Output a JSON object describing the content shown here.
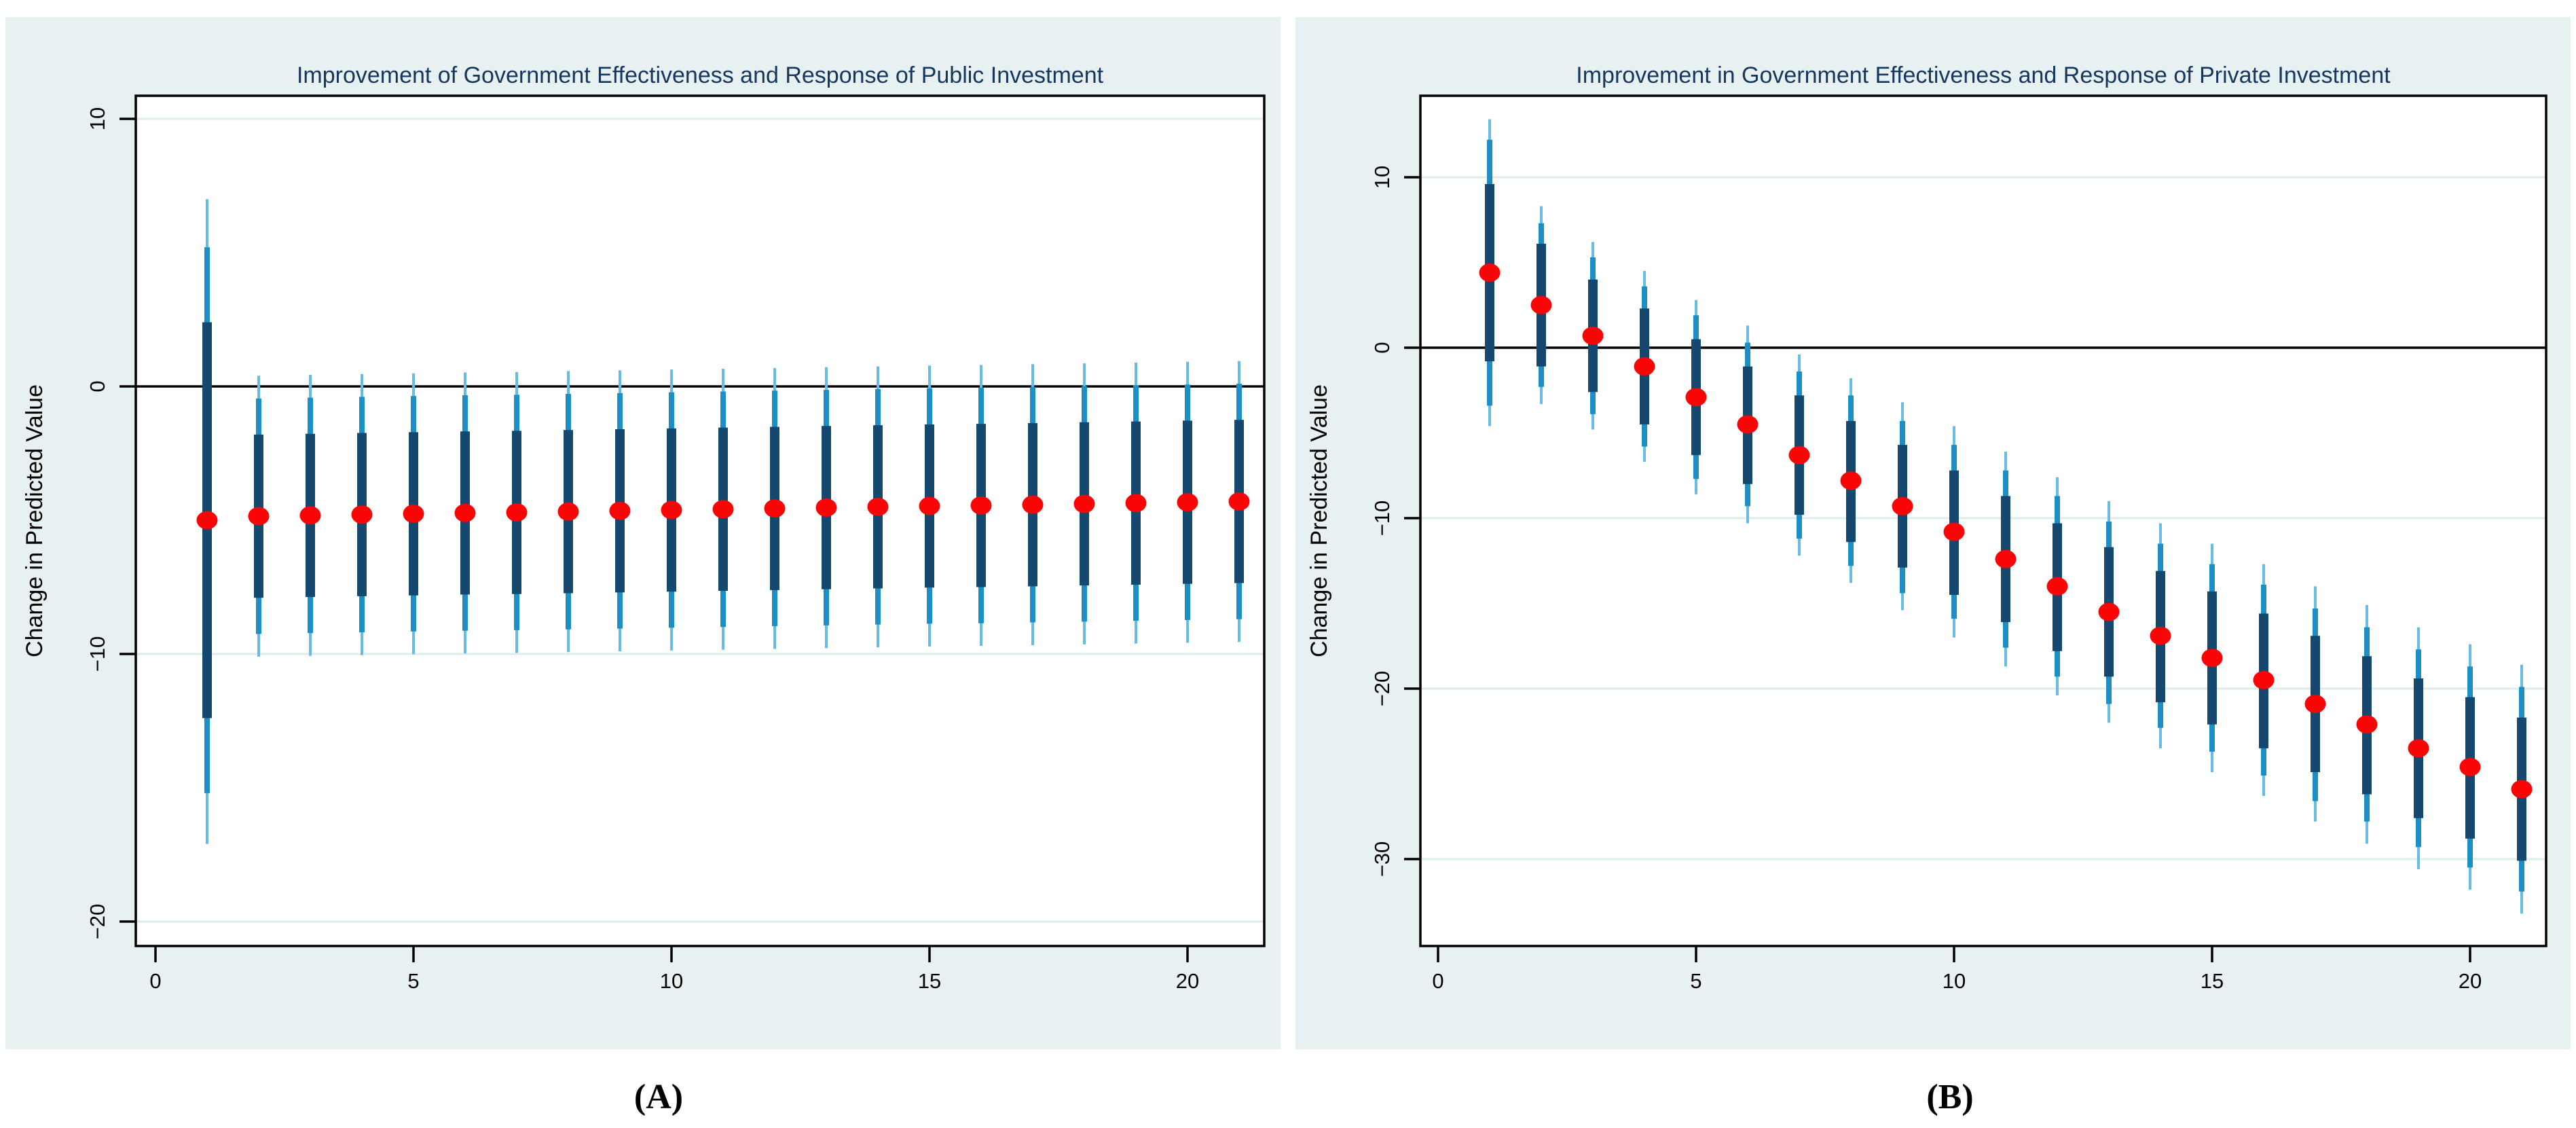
{
  "page": {
    "caption_a": "(A)",
    "caption_b": "(B)"
  },
  "colors": {
    "figure_background": "#ffffff",
    "panel_background": "#e7f1f1",
    "plot_background": "#ffffff",
    "gridline": "#ddecec",
    "axis": "#000000",
    "zero_line": "#000000",
    "title_text": "#17365d",
    "tick_text": "#000000",
    "ci_inner": "#14486f",
    "ci_mid": "#1b90c6",
    "ci_outer": "#68bbe3",
    "marker": "#fa0505"
  },
  "chart_data": [
    {
      "type": "scatter",
      "panel": "A",
      "title": "Improvement of Government Effectiveness and Response of Public Investment",
      "xlabel": "",
      "ylabel": "Change in Predicted Value",
      "x_ticks": [
        0,
        5,
        10,
        15,
        20
      ],
      "y_ticks": [
        10,
        0,
        -10,
        -20
      ],
      "xlim": [
        -0.38,
        21.5
      ],
      "ylim": [
        -20.9,
        10.9
      ],
      "zero_line": 0,
      "grid": true,
      "legend": "none",
      "series_note": "red dot = point estimate; thick navy bar = inner CI; medium blue = mid CI; thin light blue whisker = outer CI",
      "points": [
        {
          "x": 1,
          "y": -5.0,
          "inner": [
            2.4,
            -12.4
          ],
          "mid": [
            5.2,
            -15.2
          ],
          "outer": [
            7.0,
            -17.1
          ]
        },
        {
          "x": 2,
          "y": -4.85,
          "inner": [
            -1.8,
            -7.9
          ],
          "mid": [
            -0.45,
            -9.25
          ],
          "outer": [
            0.4,
            -10.1
          ]
        },
        {
          "x": 3,
          "y": -4.82,
          "inner": [
            -1.77,
            -7.87
          ],
          "mid": [
            -0.42,
            -9.22
          ],
          "outer": [
            0.43,
            -10.07
          ]
        },
        {
          "x": 4,
          "y": -4.79,
          "inner": [
            -1.74,
            -7.84
          ],
          "mid": [
            -0.39,
            -9.19
          ],
          "outer": [
            0.46,
            -10.04
          ]
        },
        {
          "x": 5,
          "y": -4.76,
          "inner": [
            -1.71,
            -7.81
          ],
          "mid": [
            -0.36,
            -9.16
          ],
          "outer": [
            0.49,
            -10.01
          ]
        },
        {
          "x": 6,
          "y": -4.73,
          "inner": [
            -1.68,
            -7.78
          ],
          "mid": [
            -0.33,
            -9.13
          ],
          "outer": [
            0.52,
            -9.98
          ]
        },
        {
          "x": 7,
          "y": -4.71,
          "inner": [
            -1.66,
            -7.76
          ],
          "mid": [
            -0.31,
            -9.11
          ],
          "outer": [
            0.54,
            -9.96
          ]
        },
        {
          "x": 8,
          "y": -4.68,
          "inner": [
            -1.63,
            -7.73
          ],
          "mid": [
            -0.28,
            -9.08
          ],
          "outer": [
            0.57,
            -9.93
          ]
        },
        {
          "x": 9,
          "y": -4.65,
          "inner": [
            -1.6,
            -7.7
          ],
          "mid": [
            -0.25,
            -9.05
          ],
          "outer": [
            0.6,
            -9.9
          ]
        },
        {
          "x": 10,
          "y": -4.62,
          "inner": [
            -1.57,
            -7.67
          ],
          "mid": [
            -0.22,
            -9.02
          ],
          "outer": [
            0.63,
            -9.87
          ]
        },
        {
          "x": 11,
          "y": -4.59,
          "inner": [
            -1.54,
            -7.64
          ],
          "mid": [
            -0.19,
            -8.99
          ],
          "outer": [
            0.66,
            -9.84
          ]
        },
        {
          "x": 12,
          "y": -4.56,
          "inner": [
            -1.51,
            -7.61
          ],
          "mid": [
            -0.16,
            -8.96
          ],
          "outer": [
            0.69,
            -9.81
          ]
        },
        {
          "x": 13,
          "y": -4.53,
          "inner": [
            -1.48,
            -7.58
          ],
          "mid": [
            -0.13,
            -8.93
          ],
          "outer": [
            0.72,
            -9.78
          ]
        },
        {
          "x": 14,
          "y": -4.5,
          "inner": [
            -1.45,
            -7.55
          ],
          "mid": [
            -0.1,
            -8.9
          ],
          "outer": [
            0.75,
            -9.75
          ]
        },
        {
          "x": 15,
          "y": -4.47,
          "inner": [
            -1.42,
            -7.52
          ],
          "mid": [
            -0.07,
            -8.87
          ],
          "outer": [
            0.78,
            -9.72
          ]
        },
        {
          "x": 16,
          "y": -4.45,
          "inner": [
            -1.4,
            -7.5
          ],
          "mid": [
            -0.05,
            -8.85
          ],
          "outer": [
            0.8,
            -9.7
          ]
        },
        {
          "x": 17,
          "y": -4.42,
          "inner": [
            -1.37,
            -7.47
          ],
          "mid": [
            -0.02,
            -8.82
          ],
          "outer": [
            0.83,
            -9.67
          ]
        },
        {
          "x": 18,
          "y": -4.39,
          "inner": [
            -1.34,
            -7.44
          ],
          "mid": [
            0.01,
            -8.79
          ],
          "outer": [
            0.86,
            -9.64
          ]
        },
        {
          "x": 19,
          "y": -4.36,
          "inner": [
            -1.31,
            -7.41
          ],
          "mid": [
            0.04,
            -8.76
          ],
          "outer": [
            0.89,
            -9.61
          ]
        },
        {
          "x": 20,
          "y": -4.33,
          "inner": [
            -1.28,
            -7.38
          ],
          "mid": [
            0.07,
            -8.73
          ],
          "outer": [
            0.92,
            -9.58
          ]
        },
        {
          "x": 21,
          "y": -4.3,
          "inner": [
            -1.25,
            -7.35
          ],
          "mid": [
            0.1,
            -8.7
          ],
          "outer": [
            0.95,
            -9.55
          ]
        }
      ]
    },
    {
      "type": "scatter",
      "panel": "B",
      "title": "Improvement in Government Effectiveness  and Response of Private Investment",
      "xlabel": "",
      "ylabel": "Change in Predicted Value",
      "x_ticks": [
        0,
        5,
        10,
        15,
        20
      ],
      "y_ticks": [
        10,
        0,
        -10,
        -20,
        -30
      ],
      "xlim": [
        -0.35,
        21.5
      ],
      "ylim": [
        -35.1,
        14.8
      ],
      "zero_line": 0,
      "grid": true,
      "legend": "none",
      "series_note": "red dot = point estimate; thick navy bar = inner CI; medium blue = mid CI; thin light blue whisker = outer CI",
      "points": [
        {
          "x": 1,
          "y": 4.4,
          "inner": [
            9.6,
            -0.8
          ],
          "mid": [
            12.2,
            -3.4
          ],
          "outer": [
            13.4,
            -4.6
          ]
        },
        {
          "x": 2,
          "y": 2.5,
          "inner": [
            6.1,
            -1.1
          ],
          "mid": [
            7.3,
            -2.3
          ],
          "outer": [
            8.3,
            -3.3
          ]
        },
        {
          "x": 3,
          "y": 0.7,
          "inner": [
            4.0,
            -2.6
          ],
          "mid": [
            5.3,
            -3.9
          ],
          "outer": [
            6.2,
            -4.8
          ]
        },
        {
          "x": 4,
          "y": -1.1,
          "inner": [
            2.3,
            -4.5
          ],
          "mid": [
            3.6,
            -5.8
          ],
          "outer": [
            4.5,
            -6.7
          ]
        },
        {
          "x": 5,
          "y": -2.9,
          "inner": [
            0.5,
            -6.3
          ],
          "mid": [
            1.9,
            -7.7
          ],
          "outer": [
            2.8,
            -8.6
          ]
        },
        {
          "x": 6,
          "y": -4.5,
          "inner": [
            -1.1,
            -8.0
          ],
          "mid": [
            0.3,
            -9.3
          ],
          "outer": [
            1.3,
            -10.3
          ]
        },
        {
          "x": 7,
          "y": -6.3,
          "inner": [
            -2.8,
            -9.8
          ],
          "mid": [
            -1.4,
            -11.2
          ],
          "outer": [
            -0.4,
            -12.2
          ]
        },
        {
          "x": 8,
          "y": -7.8,
          "inner": [
            -4.3,
            -11.4
          ],
          "mid": [
            -2.8,
            -12.8
          ],
          "outer": [
            -1.8,
            -13.8
          ]
        },
        {
          "x": 9,
          "y": -9.3,
          "inner": [
            -5.7,
            -12.9
          ],
          "mid": [
            -4.3,
            -14.4
          ],
          "outer": [
            -3.2,
            -15.4
          ]
        },
        {
          "x": 10,
          "y": -10.8,
          "inner": [
            -7.2,
            -14.5
          ],
          "mid": [
            -5.7,
            -15.9
          ],
          "outer": [
            -4.6,
            -17.0
          ]
        },
        {
          "x": 11,
          "y": -12.4,
          "inner": [
            -8.7,
            -16.1
          ],
          "mid": [
            -7.2,
            -17.6
          ],
          "outer": [
            -6.1,
            -18.7
          ]
        },
        {
          "x": 12,
          "y": -14.0,
          "inner": [
            -10.3,
            -17.8
          ],
          "mid": [
            -8.7,
            -19.3
          ],
          "outer": [
            -7.6,
            -20.4
          ]
        },
        {
          "x": 13,
          "y": -15.5,
          "inner": [
            -11.7,
            -19.3
          ],
          "mid": [
            -10.2,
            -20.9
          ],
          "outer": [
            -9.0,
            -22.0
          ]
        },
        {
          "x": 14,
          "y": -16.9,
          "inner": [
            -13.1,
            -20.8
          ],
          "mid": [
            -11.5,
            -22.3
          ],
          "outer": [
            -10.3,
            -23.5
          ]
        },
        {
          "x": 15,
          "y": -18.2,
          "inner": [
            -14.3,
            -22.1
          ],
          "mid": [
            -12.7,
            -23.7
          ],
          "outer": [
            -11.5,
            -24.9
          ]
        },
        {
          "x": 16,
          "y": -19.5,
          "inner": [
            -15.6,
            -23.5
          ],
          "mid": [
            -13.9,
            -25.1
          ],
          "outer": [
            -12.7,
            -26.3
          ]
        },
        {
          "x": 17,
          "y": -20.9,
          "inner": [
            -16.9,
            -24.9
          ],
          "mid": [
            -15.3,
            -26.6
          ],
          "outer": [
            -14.0,
            -27.8
          ]
        },
        {
          "x": 18,
          "y": -22.1,
          "inner": [
            -18.1,
            -26.2
          ],
          "mid": [
            -16.4,
            -27.8
          ],
          "outer": [
            -15.1,
            -29.1
          ]
        },
        {
          "x": 19,
          "y": -23.5,
          "inner": [
            -19.4,
            -27.6
          ],
          "mid": [
            -17.7,
            -29.3
          ],
          "outer": [
            -16.4,
            -30.6
          ]
        },
        {
          "x": 20,
          "y": -24.6,
          "inner": [
            -20.5,
            -28.8
          ],
          "mid": [
            -18.7,
            -30.5
          ],
          "outer": [
            -17.4,
            -31.8
          ]
        },
        {
          "x": 21,
          "y": -25.9,
          "inner": [
            -21.7,
            -30.1
          ],
          "mid": [
            -19.9,
            -31.9
          ],
          "outer": [
            -18.6,
            -33.2
          ]
        }
      ]
    }
  ]
}
